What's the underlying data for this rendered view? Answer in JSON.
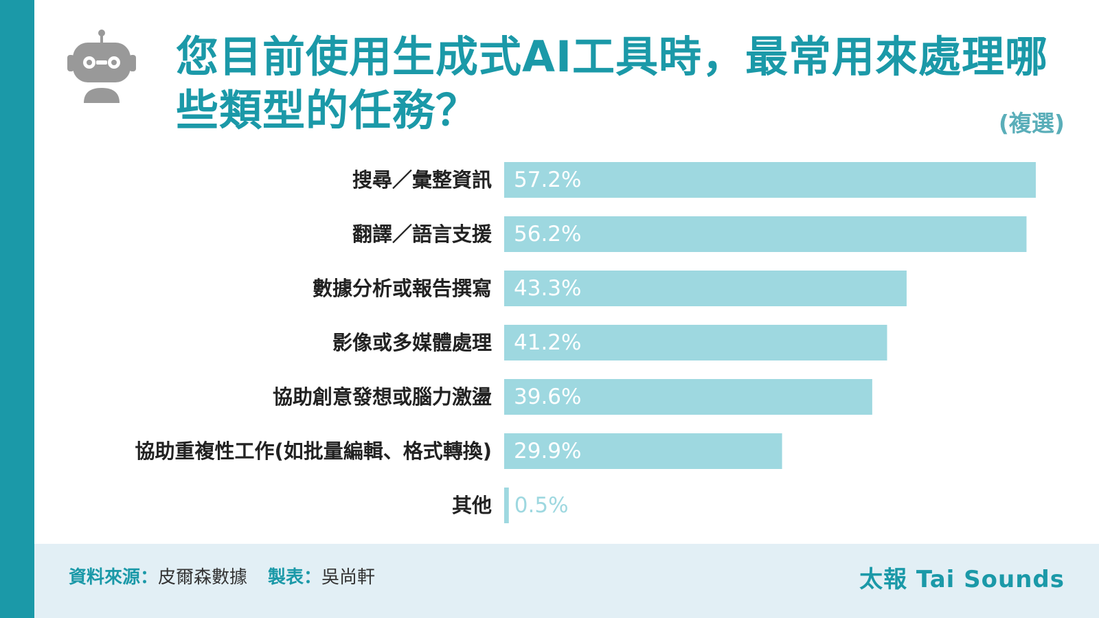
{
  "header": {
    "title": "您目前使用生成式AI工具時，最常用來處理哪些類型的任務？",
    "subtitle": "(複選)"
  },
  "icons": {
    "robot": "robot-icon"
  },
  "colors": {
    "accent": "#1b99a8",
    "bar": "#9ed8e0",
    "label": "#222222",
    "value_text": "#ffffff",
    "footer_bg": "#e2eff5"
  },
  "chart_data": {
    "type": "bar",
    "orientation": "horizontal",
    "categories": [
      "搜尋／彙整資訊",
      "翻譯／語言支援",
      "數據分析或報告撰寫",
      "影像或多媒體處理",
      "協助創意發想或腦力激盪",
      "協助重複性工作(如批量編輯、格式轉換)",
      "其他"
    ],
    "values": [
      57.2,
      56.2,
      43.3,
      41.2,
      39.6,
      29.9,
      0.5
    ],
    "value_labels": [
      "57.2%",
      "56.2%",
      "43.3%",
      "41.2%",
      "39.6%",
      "29.9%",
      "0.5%"
    ],
    "unit": "%",
    "xlim": [
      0,
      57.2
    ],
    "grid": false,
    "legend": "none"
  },
  "footer": {
    "source_label": "資料來源：",
    "source_value": "皮爾森數據",
    "maker_label": "製表：",
    "maker_value": "吳尚軒",
    "brand": "太報 Tai Sounds"
  }
}
